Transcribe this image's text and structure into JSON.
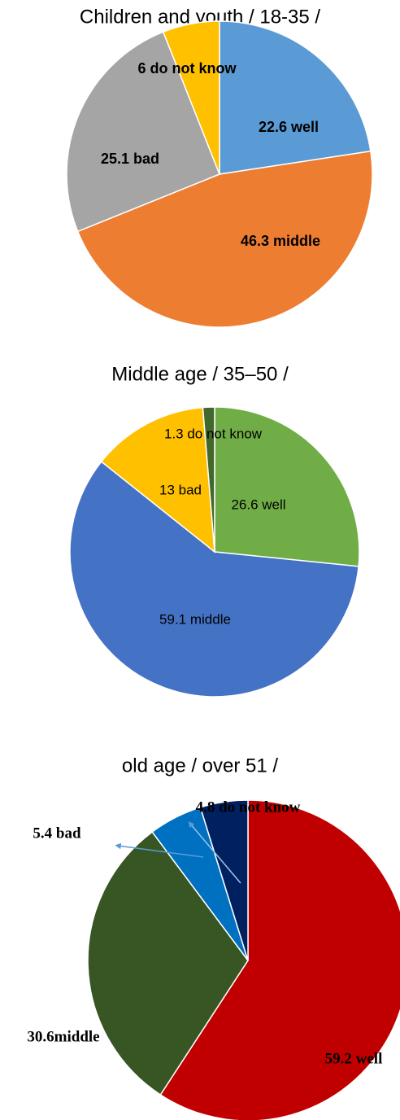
{
  "chart_data": [
    {
      "type": "pie",
      "title": "Children and youth / 18-35 /",
      "values": [
        22.6,
        46.3,
        25.1,
        6
      ],
      "value_labels": [
        "22.6 well",
        "46.3 middle",
        "25.1 bad",
        "6 do not know"
      ],
      "colors": [
        "#5b9bd5",
        "#ed7d31",
        "#a5a5a5",
        "#ffc000"
      ]
    },
    {
      "type": "pie",
      "title": "Middle age / 35–50 /",
      "values": [
        26.6,
        59.1,
        13,
        1.3
      ],
      "value_labels": [
        "26.6 well",
        "59.1 middle",
        "13 bad",
        "1.3 do not know"
      ],
      "colors": [
        "#70ad47",
        "#4472c4",
        "#ffc000",
        "#43682b"
      ]
    },
    {
      "type": "pie",
      "title": "old age / over 51 /",
      "values": [
        59.2,
        30.6,
        5.4,
        4.8
      ],
      "value_labels": [
        "59.2 well",
        "30.6middle",
        "5.4 bad",
        "4.8 do not know"
      ],
      "colors": [
        "#c00000",
        "#375623",
        "#0070c0",
        "#002060"
      ]
    }
  ]
}
